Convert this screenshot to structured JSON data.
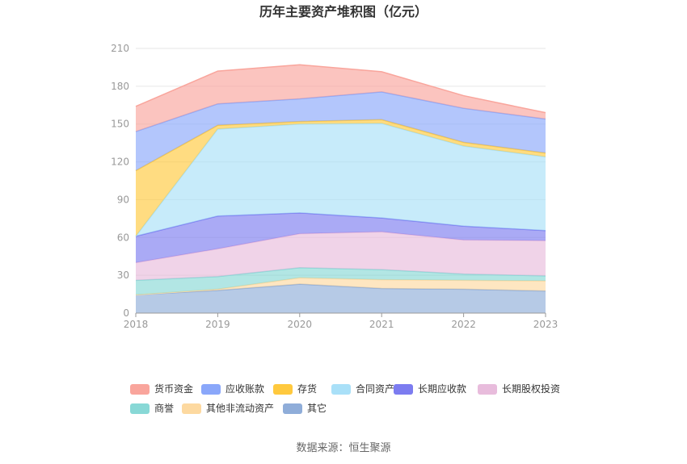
{
  "chart_data": {
    "type": "area",
    "stacked": true,
    "title": "历年主要资产堆积图（亿元）",
    "xlabel": "",
    "ylabel": "",
    "x": [
      "2018",
      "2019",
      "2020",
      "2021",
      "2022",
      "2023"
    ],
    "ylim": [
      0,
      210
    ],
    "yticks": [
      "0",
      "30",
      "60",
      "90",
      "120",
      "150",
      "180",
      "210"
    ],
    "grid": true,
    "legend_position": "bottom",
    "series": [
      {
        "name": "其它",
        "color": "#8fadd9",
        "values": [
          14.5,
          18,
          23,
          19.5,
          19,
          17.5
        ]
      },
      {
        "name": "其他非流动资产",
        "color": "#fdd9a0",
        "values": [
          0,
          1,
          5,
          7,
          7,
          8
        ]
      },
      {
        "name": "商誉",
        "color": "#88d8d6",
        "values": [
          11.5,
          10,
          8,
          8,
          5,
          4
        ]
      },
      {
        "name": "长期股权投资",
        "color": "#e8bcdc",
        "values": [
          14,
          22,
          27,
          30,
          27,
          28
        ]
      },
      {
        "name": "长期应收款",
        "color": "#7c7cf0",
        "values": [
          21,
          26,
          16.5,
          11,
          11,
          8
        ]
      },
      {
        "name": "合同资产",
        "color": "#a9e0f8",
        "values": [
          0,
          69,
          70.5,
          75,
          63.5,
          58.5
        ]
      },
      {
        "name": "存货",
        "color": "#ffc93e",
        "values": [
          52,
          3,
          2,
          3,
          3,
          3
        ]
      },
      {
        "name": "应收账款",
        "color": "#8aa7fa",
        "values": [
          31,
          17,
          18,
          22,
          27,
          27
        ]
      },
      {
        "name": "货币资金",
        "color": "#f9a59c",
        "values": [
          20,
          26,
          27,
          16,
          10,
          5
        ]
      }
    ],
    "legend_order": [
      "货币资金",
      "应收账款",
      "存货",
      "合同资产",
      "长期应收款",
      "长期股权投资",
      "商誉",
      "其他非流动资产",
      "其它"
    ]
  },
  "source": "数据来源：恒生聚源"
}
